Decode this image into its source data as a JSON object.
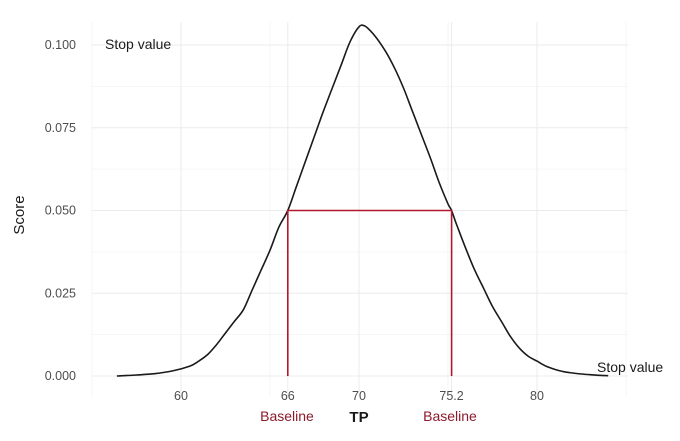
{
  "chart_data": {
    "type": "line",
    "title": "",
    "xlabel": "TP",
    "ylabel": "Score",
    "xlim": [
      55,
      85
    ],
    "ylim": [
      0,
      0.1
    ],
    "grid": true,
    "legend": "none",
    "x_ticks": [
      {
        "value": 60,
        "label": "60",
        "highlight": false
      },
      {
        "value": 66,
        "label": "66",
        "highlight": true
      },
      {
        "value": 70,
        "label": "70",
        "highlight": false
      },
      {
        "value": 75.2,
        "label": "75.2",
        "highlight": true
      },
      {
        "value": 80,
        "label": "80",
        "highlight": false
      }
    ],
    "y_ticks": [
      {
        "value": 0.0,
        "label": "0.000"
      },
      {
        "value": 0.025,
        "label": "0.025"
      },
      {
        "value": 0.05,
        "label": "0.050"
      },
      {
        "value": 0.075,
        "label": "0.075"
      },
      {
        "value": 0.1,
        "label": "0.100"
      }
    ],
    "series": [
      {
        "name": "density",
        "color": "#1a1a1a",
        "x": [
          56.4,
          57.5,
          58.5,
          59.5,
          60.5,
          61.0,
          61.5,
          62.0,
          62.5,
          63.0,
          63.5,
          64.0,
          64.5,
          65.0,
          65.5,
          66.0,
          66.5,
          67.0,
          67.5,
          68.0,
          68.5,
          69.0,
          69.5,
          70.0,
          70.3,
          70.6,
          71.0,
          71.5,
          72.0,
          72.5,
          73.0,
          73.5,
          74.0,
          74.5,
          75.0,
          75.2,
          75.5,
          76.0,
          76.5,
          77.0,
          77.5,
          78.0,
          78.5,
          79.0,
          79.5,
          80.0,
          80.5,
          81.0,
          81.5,
          82.0,
          82.5,
          83.0,
          83.5,
          84.0
        ],
        "y": [
          0.0,
          0.0003,
          0.0007,
          0.0015,
          0.003,
          0.0045,
          0.0065,
          0.0095,
          0.013,
          0.0165,
          0.02,
          0.026,
          0.032,
          0.038,
          0.045,
          0.05,
          0.0575,
          0.065,
          0.0725,
          0.08,
          0.087,
          0.094,
          0.101,
          0.1055,
          0.1058,
          0.1045,
          0.102,
          0.098,
          0.093,
          0.087,
          0.08,
          0.073,
          0.066,
          0.0585,
          0.052,
          0.05,
          0.0455,
          0.0385,
          0.032,
          0.0265,
          0.021,
          0.0165,
          0.012,
          0.0085,
          0.006,
          0.0045,
          0.003,
          0.002,
          0.0013,
          0.0009,
          0.0006,
          0.0004,
          0.0002,
          0.0001
        ]
      },
      {
        "name": "baseline-band",
        "color": "#b2182b",
        "x": [
          66,
          66,
          75.2,
          75.2
        ],
        "y": [
          0.0,
          0.05,
          0.05,
          0.0
        ]
      }
    ],
    "annotations": [
      {
        "text": "Stop value",
        "x": 58.0,
        "y": 0.1
      },
      {
        "text": "Stop value",
        "x": 84.5,
        "y": 0.003
      },
      {
        "text": "Baseline",
        "x": 66,
        "position": "below-axis",
        "color": "#8b1a2b"
      },
      {
        "text": "Baseline",
        "x": 75.2,
        "position": "below-axis",
        "color": "#8b1a2b"
      }
    ]
  },
  "labels": {
    "ylabel": "Score",
    "xlabel": "TP",
    "stop_value_top": "Stop value",
    "stop_value_right": "Stop value",
    "baseline_left": "Baseline",
    "baseline_right": "Baseline"
  },
  "colors": {
    "curve": "#1a1a1a",
    "baseline": "#b2182b",
    "baseline_text": "#8b1a2b"
  }
}
